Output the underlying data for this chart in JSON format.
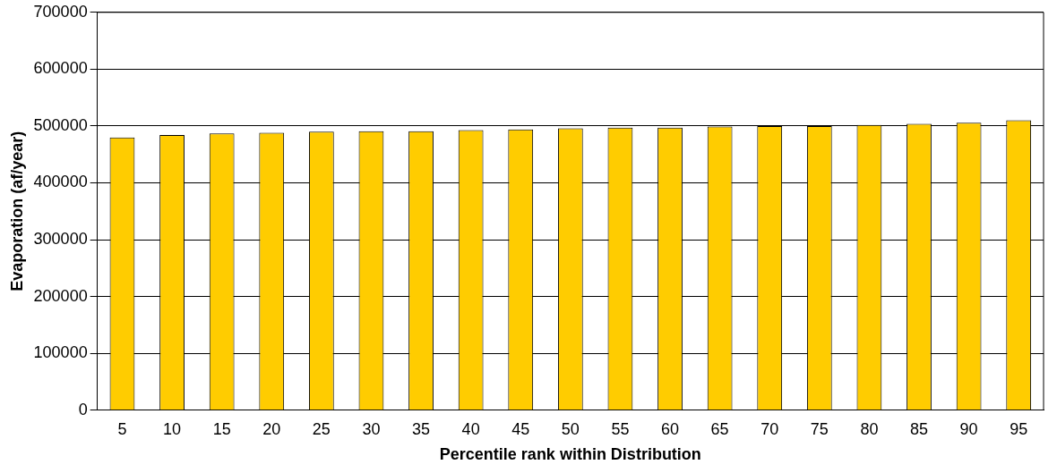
{
  "chart_data": {
    "type": "bar",
    "xlabel": "Percentile rank within Distribution",
    "ylabel": "Evaporation (af/year)",
    "categories": [
      "5",
      "10",
      "15",
      "20",
      "25",
      "30",
      "35",
      "40",
      "45",
      "50",
      "55",
      "60",
      "65",
      "70",
      "75",
      "80",
      "85",
      "90",
      "95"
    ],
    "values": [
      480000,
      484000,
      487000,
      488000,
      490000,
      491000,
      491000,
      493000,
      494000,
      496000,
      497000,
      497000,
      499000,
      500000,
      500000,
      502000,
      504000,
      506000,
      510000
    ],
    "color": "#ffcc00",
    "ylim": [
      0,
      700000
    ],
    "yticks": [
      0,
      100000,
      200000,
      300000,
      400000,
      500000,
      600000,
      700000
    ],
    "grid": "y",
    "legend": false
  }
}
